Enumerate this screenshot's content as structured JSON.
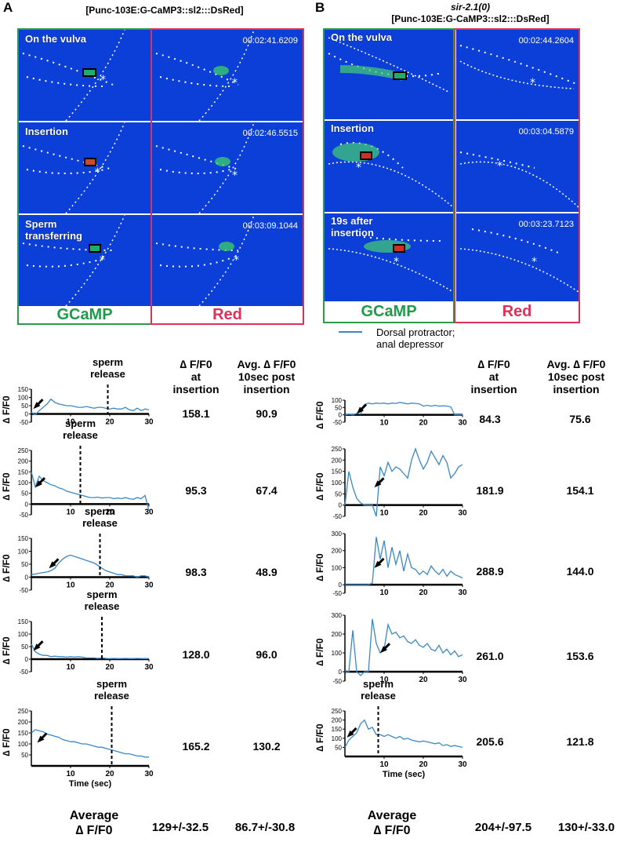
{
  "panels": {
    "A": {
      "letter": "A",
      "strain": "",
      "genotype": "[Punc-103E:G-CaMP3::sl2:::DsRed]"
    },
    "B": {
      "letter": "B",
      "strain": "sir-2.1(0)",
      "genotype": "[Punc-103E:G-CaMP3::sl2:::DsRed]"
    }
  },
  "images": {
    "A": [
      {
        "label": "On the vulva",
        "timestamp": "00:02:41.6209"
      },
      {
        "label": "Insertion",
        "timestamp": "00:02:46.5515"
      },
      {
        "label": "Sperm\ntransferring",
        "timestamp": "00:03:09.1044"
      }
    ],
    "B": [
      {
        "label": "On the vulva",
        "timestamp": "00:02:44.2604"
      },
      {
        "label": "Insertion",
        "timestamp": "00:03:04.5879"
      },
      {
        "label": "19s after\ninsertion",
        "timestamp": "00:03:23.7123"
      }
    ]
  },
  "channels": {
    "green": "GCaMP",
    "red": "Red"
  },
  "legend": {
    "label": "Dorsal protractor;\nanal depressor",
    "color": "#3a88c8"
  },
  "table_headers": {
    "A": {
      "col1": "∆ F/F0\nat\ninsertion",
      "col2": "Avg. ∆ F/F0\n10sec post\ninsertion"
    },
    "B": {
      "col1": "∆ F/F0\nat\ninsertion",
      "col2": "Avg. ∆ F/F0\n10sec post\ninsertion"
    }
  },
  "y_axis_label": "∆ F/F0",
  "x_axis_label": "Time (sec)",
  "sperm_release_label": "sperm\nrelease",
  "averages": {
    "label": "Average\n∆ F/F0",
    "A": {
      "col1": "129+/-32.5",
      "col2": "86.7+/-30.8"
    },
    "B": {
      "col1": "204+/-97.5",
      "col2": "130+/-33.0"
    }
  },
  "chart_data": [
    {
      "type": "line",
      "panel": "A",
      "index": 1,
      "ylim": [
        -50,
        150
      ],
      "yticks": [
        "150",
        "100",
        "50",
        "0",
        "-50"
      ],
      "xlim": [
        0,
        30
      ],
      "xticks": [
        "10",
        "20",
        "30"
      ],
      "sperm_release_x": 19.5,
      "arrow_x": 0.5,
      "x": [
        0,
        1,
        2,
        3,
        4,
        5,
        6,
        7,
        8,
        9,
        10,
        11,
        12,
        13,
        14,
        15,
        16,
        17,
        18,
        19,
        20,
        21,
        22,
        23,
        24,
        25,
        26,
        27,
        28,
        29,
        30
      ],
      "y": [
        10,
        -5,
        20,
        40,
        60,
        90,
        70,
        60,
        55,
        50,
        50,
        45,
        40,
        40,
        45,
        40,
        35,
        40,
        40,
        35,
        30,
        35,
        30,
        30,
        40,
        25,
        20,
        35,
        20,
        30,
        25
      ],
      "values": {
        "delta_at_insertion": "158.1",
        "avg_10s_post": "90.9"
      }
    },
    {
      "type": "line",
      "panel": "A",
      "index": 2,
      "ylim": [
        -50,
        250
      ],
      "yticks": [
        "250",
        "200",
        "150",
        "100",
        "50",
        "0",
        "-50"
      ],
      "xlim": [
        0,
        30
      ],
      "xticks": [
        "10",
        "20",
        "30"
      ],
      "sperm_release_x": 12.5,
      "arrow_x": 1,
      "x": [
        0,
        1,
        2,
        3,
        4,
        5,
        6,
        7,
        8,
        9,
        10,
        11,
        12,
        13,
        14,
        15,
        16,
        17,
        18,
        19,
        20,
        21,
        22,
        23,
        24,
        25,
        26,
        27,
        28,
        29,
        30
      ],
      "y": [
        150,
        80,
        130,
        110,
        100,
        90,
        85,
        75,
        70,
        60,
        55,
        50,
        45,
        40,
        35,
        30,
        30,
        32,
        28,
        30,
        30,
        25,
        28,
        25,
        30,
        25,
        22,
        30,
        25,
        40,
        -30
      ],
      "values": {
        "delta_at_insertion": "95.3",
        "avg_10s_post": "67.4"
      }
    },
    {
      "type": "line",
      "panel": "A",
      "index": 3,
      "ylim": [
        -50,
        150
      ],
      "yticks": [
        "150",
        "100",
        "50",
        "0",
        "-50"
      ],
      "xlim": [
        0,
        30
      ],
      "xticks": [
        "10",
        "20",
        "30"
      ],
      "sperm_release_x": 17.5,
      "arrow_x": 4.5,
      "x": [
        0,
        1,
        2,
        3,
        4,
        5,
        6,
        7,
        8,
        9,
        10,
        11,
        12,
        13,
        14,
        15,
        16,
        17,
        18,
        19,
        20,
        21,
        22,
        23,
        24,
        25,
        26,
        27,
        28,
        29,
        30
      ],
      "y": [
        10,
        12,
        15,
        18,
        20,
        25,
        35,
        55,
        70,
        80,
        85,
        80,
        75,
        70,
        65,
        60,
        55,
        45,
        35,
        25,
        20,
        15,
        10,
        10,
        5,
        5,
        5,
        0,
        5,
        5,
        0
      ],
      "values": {
        "delta_at_insertion": "98.3",
        "avg_10s_post": "48.9"
      }
    },
    {
      "type": "line",
      "panel": "A",
      "index": 4,
      "ylim": [
        -50,
        150
      ],
      "yticks": [
        "150",
        "100",
        "50",
        "0",
        "-50"
      ],
      "xlim": [
        0,
        30
      ],
      "xticks": [
        "10",
        "20",
        "30"
      ],
      "sperm_release_x": 18,
      "arrow_x": 0.5,
      "x": [
        0,
        1,
        2,
        3,
        4,
        5,
        6,
        7,
        8,
        9,
        10,
        11,
        12,
        13,
        14,
        15,
        16,
        17,
        18,
        19,
        20,
        21,
        22,
        23,
        24,
        25,
        26,
        27,
        28,
        29,
        30
      ],
      "y": [
        60,
        30,
        20,
        15,
        15,
        10,
        12,
        10,
        10,
        8,
        10,
        8,
        10,
        8,
        5,
        5,
        5,
        3,
        5,
        3,
        2,
        3,
        2,
        2,
        3,
        2,
        2,
        3,
        2,
        2,
        2
      ],
      "values": {
        "delta_at_insertion": "128.0",
        "avg_10s_post": "96.0"
      }
    },
    {
      "type": "line",
      "panel": "A",
      "index": 5,
      "ylim": [
        0,
        250
      ],
      "yticks": [
        "250",
        "200",
        "150",
        "100",
        "50"
      ],
      "xlim": [
        0,
        30
      ],
      "xticks": [
        "10",
        "20",
        "30"
      ],
      "xlabel": "Time (sec)",
      "sperm_release_x": 20.5,
      "arrow_x": 1.5,
      "x": [
        0,
        1,
        2,
        3,
        4,
        5,
        6,
        7,
        8,
        9,
        10,
        11,
        12,
        13,
        14,
        15,
        16,
        17,
        18,
        19,
        20,
        21,
        22,
        23,
        24,
        25,
        26,
        27,
        28,
        29,
        30
      ],
      "y": [
        150,
        165,
        160,
        155,
        145,
        140,
        135,
        130,
        120,
        115,
        110,
        110,
        105,
        100,
        100,
        95,
        90,
        85,
        85,
        80,
        75,
        70,
        65,
        60,
        55,
        55,
        50,
        45,
        45,
        40,
        40
      ],
      "values": {
        "delta_at_insertion": "165.2",
        "avg_10s_post": "130.2"
      }
    },
    {
      "type": "line",
      "panel": "B",
      "index": 1,
      "ylim": [
        -50,
        100
      ],
      "yticks": [
        "100",
        "50",
        "0",
        "-50"
      ],
      "xlim": [
        0,
        30
      ],
      "xticks": [
        "10",
        "20",
        "30"
      ],
      "arrow_x": 3,
      "x": [
        0,
        1,
        2,
        3,
        4,
        5,
        6,
        7,
        8,
        9,
        10,
        11,
        12,
        13,
        14,
        15,
        16,
        17,
        18,
        19,
        20,
        21,
        22,
        23,
        24,
        25,
        26,
        27,
        28,
        29,
        30
      ],
      "y": [
        0,
        5,
        0,
        10,
        5,
        70,
        80,
        75,
        80,
        78,
        80,
        75,
        80,
        78,
        85,
        80,
        75,
        80,
        78,
        75,
        60,
        65,
        60,
        65,
        60,
        62,
        60,
        55,
        0,
        0,
        0
      ],
      "values": {
        "delta_at_insertion": "84.3",
        "avg_10s_post": "75.6"
      }
    },
    {
      "type": "line",
      "panel": "B",
      "index": 2,
      "ylim": [
        -50,
        250
      ],
      "yticks": [
        "250",
        "200",
        "150",
        "100",
        "50",
        "0",
        "-50"
      ],
      "xlim": [
        0,
        30
      ],
      "xticks": [
        "10",
        "20",
        "30"
      ],
      "arrow_x": 7.5,
      "x": [
        0,
        1,
        2,
        3,
        4,
        5,
        6,
        7,
        8,
        9,
        10,
        11,
        12,
        13,
        14,
        15,
        16,
        17,
        18,
        19,
        20,
        21,
        22,
        23,
        24,
        25,
        26,
        27,
        28,
        29,
        30
      ],
      "y": [
        0,
        150,
        80,
        30,
        10,
        0,
        0,
        0,
        -50,
        170,
        130,
        190,
        150,
        170,
        160,
        140,
        120,
        200,
        250,
        200,
        160,
        190,
        240,
        210,
        180,
        220,
        190,
        120,
        140,
        170,
        180
      ],
      "values": {
        "delta_at_insertion": "181.9",
        "avg_10s_post": "154.1"
      }
    },
    {
      "type": "line",
      "panel": "B",
      "index": 3,
      "ylim": [
        -50,
        300
      ],
      "yticks": [
        "300",
        "200",
        "100",
        "0",
        "-50"
      ],
      "xlim": [
        0,
        30
      ],
      "xticks": [
        "10",
        "20",
        "30"
      ],
      "arrow_x": 7.5,
      "x": [
        0,
        1,
        2,
        3,
        4,
        5,
        6,
        7,
        8,
        9,
        10,
        11,
        12,
        13,
        14,
        15,
        16,
        17,
        18,
        19,
        20,
        21,
        22,
        23,
        24,
        25,
        26,
        27,
        28,
        29,
        30
      ],
      "y": [
        0,
        0,
        0,
        0,
        0,
        0,
        0,
        10,
        280,
        150,
        260,
        100,
        220,
        120,
        200,
        80,
        180,
        100,
        90,
        60,
        80,
        60,
        110,
        80,
        60,
        90,
        50,
        80,
        60,
        50,
        40
      ],
      "values": {
        "delta_at_insertion": "288.9",
        "avg_10s_post": "144.0"
      }
    },
    {
      "type": "line",
      "panel": "B",
      "index": 4,
      "ylim": [
        -50,
        300
      ],
      "yticks": [
        "300",
        "200",
        "100",
        "0",
        "-50"
      ],
      "xlim": [
        0,
        30
      ],
      "xticks": [
        "10",
        "20",
        "30"
      ],
      "arrow_x": 9,
      "x": [
        0,
        1,
        2,
        3,
        4,
        5,
        6,
        7,
        8,
        9,
        10,
        11,
        12,
        13,
        14,
        15,
        16,
        17,
        18,
        19,
        20,
        21,
        22,
        23,
        24,
        25,
        26,
        27,
        28,
        29,
        30
      ],
      "y": [
        0,
        0,
        220,
        0,
        -20,
        0,
        0,
        280,
        150,
        100,
        120,
        250,
        200,
        210,
        180,
        190,
        160,
        150,
        170,
        140,
        130,
        150,
        120,
        110,
        140,
        100,
        120,
        90,
        110,
        80,
        90
      ],
      "values": {
        "delta_at_insertion": "261.0",
        "avg_10s_post": "153.6"
      }
    },
    {
      "type": "line",
      "panel": "B",
      "index": 5,
      "ylim": [
        0,
        250
      ],
      "yticks": [
        "250",
        "200",
        "150",
        "100",
        "50"
      ],
      "xlim": [
        0,
        30
      ],
      "xticks": [
        "10",
        "20",
        "30"
      ],
      "xlabel": "Time (sec)",
      "sperm_release_x": 8.5,
      "sperm_release_above": true,
      "arrow_x": 0.5,
      "x": [
        0,
        1,
        2,
        3,
        4,
        5,
        6,
        7,
        8,
        9,
        10,
        11,
        12,
        13,
        14,
        15,
        16,
        17,
        18,
        19,
        20,
        21,
        22,
        23,
        24,
        25,
        26,
        27,
        28,
        29,
        30
      ],
      "y": [
        50,
        90,
        110,
        130,
        180,
        200,
        150,
        160,
        120,
        120,
        110,
        120,
        110,
        100,
        110,
        95,
        100,
        90,
        85,
        80,
        85,
        80,
        75,
        70,
        75,
        60,
        65,
        55,
        60,
        55,
        50
      ],
      "values": {
        "delta_at_insertion": "205.6",
        "avg_10s_post": "121.8"
      }
    }
  ]
}
